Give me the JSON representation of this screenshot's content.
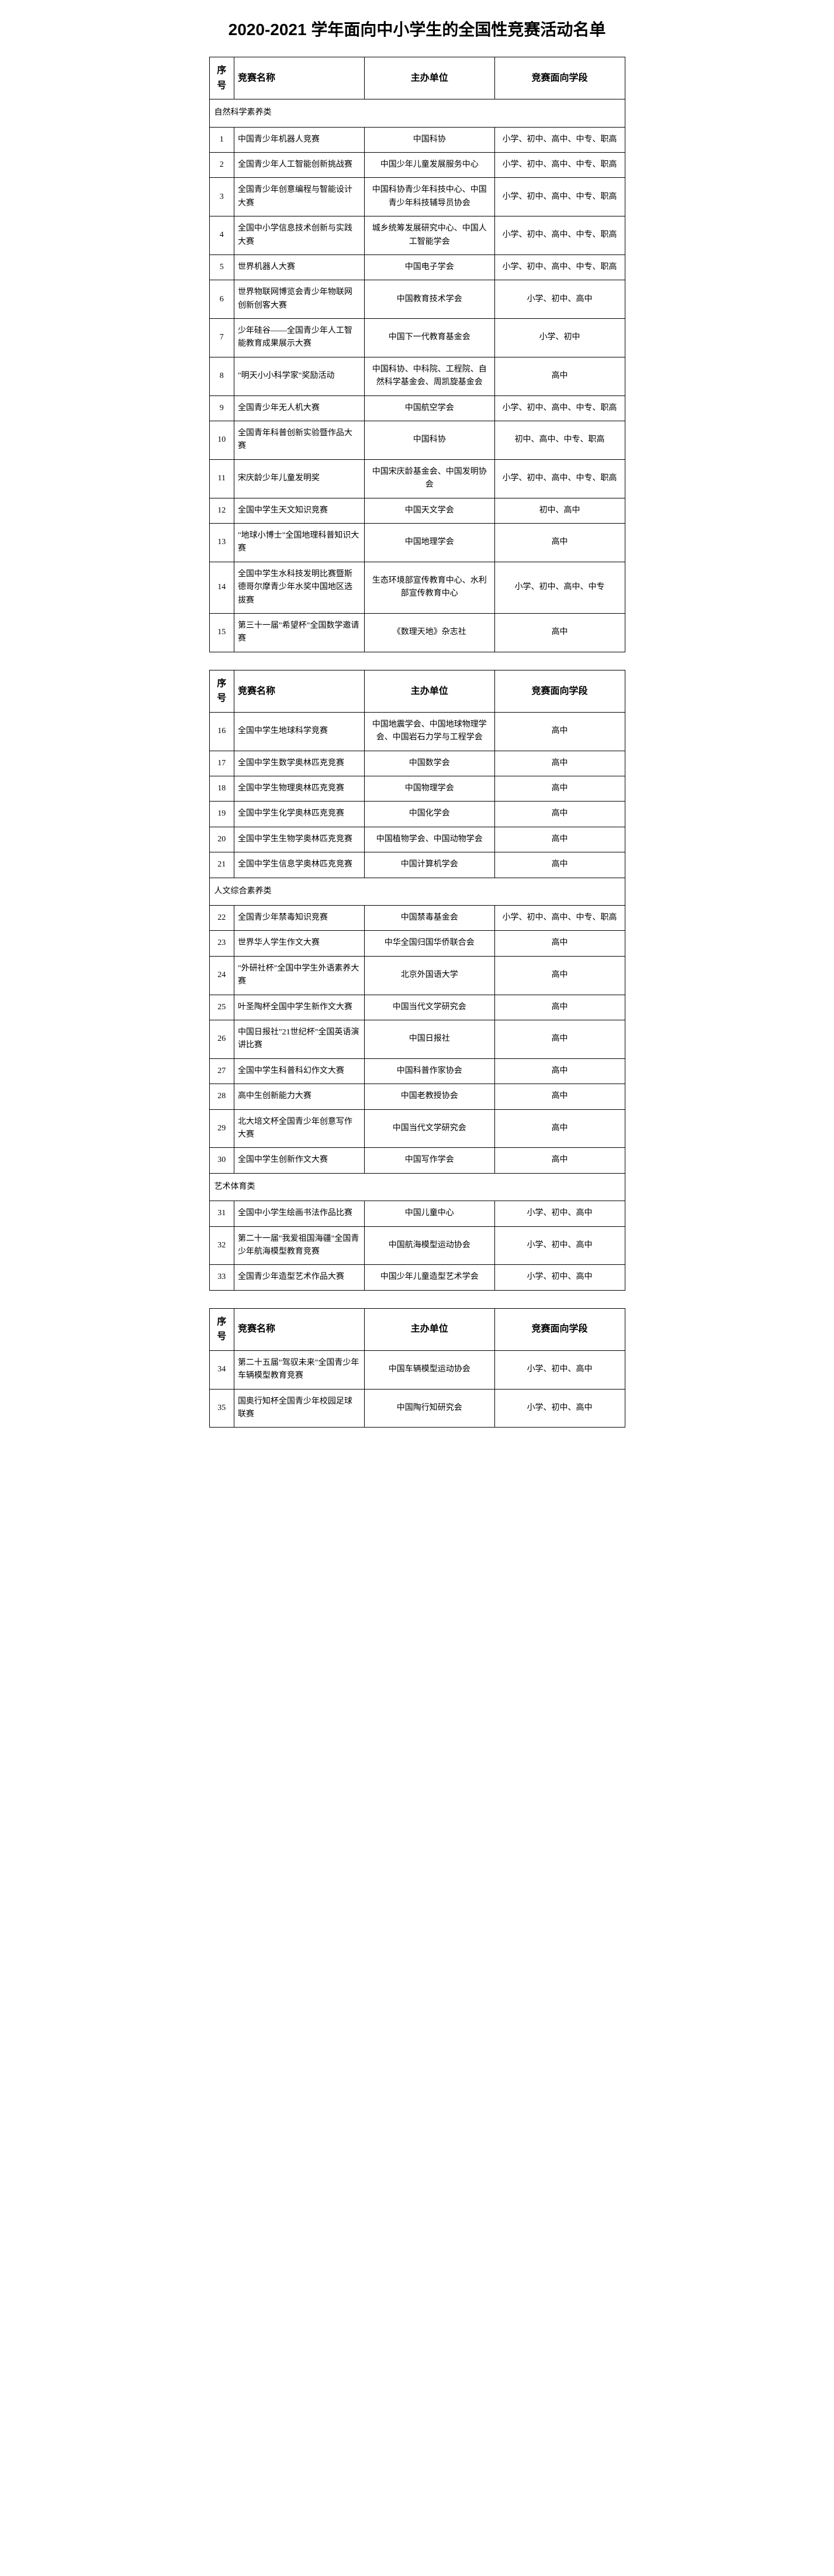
{
  "title": "2020-2021 学年面向中小学生的全国性竞赛活动名单",
  "headers": {
    "idx": "序号",
    "name": "竞赛名称",
    "org": "主办单位",
    "stage": "竞赛面向学段"
  },
  "categories": {
    "cat1": "自然科学素养类",
    "cat2": "人文综合素养类",
    "cat3": "艺术体育类"
  },
  "sections": [
    {
      "category": "cat1",
      "rows": [
        {
          "idx": "1",
          "name": "中国青少年机器人竞赛",
          "org": "中国科协",
          "stage": "小学、初中、高中、中专、职高"
        },
        {
          "idx": "2",
          "name": "全国青少年人工智能创新挑战赛",
          "org": "中国少年儿童发展服务中心",
          "stage": "小学、初中、高中、中专、职高"
        },
        {
          "idx": "3",
          "name": "全国青少年创意编程与智能设计大赛",
          "org": "中国科协青少年科技中心、中国青少年科技辅导员协会",
          "stage": "小学、初中、高中、中专、职高"
        },
        {
          "idx": "4",
          "name": "全国中小学信息技术创新与实践大赛",
          "org": "城乡统筹发展研究中心、中国人工智能学会",
          "stage": "小学、初中、高中、中专、职高"
        },
        {
          "idx": "5",
          "name": "世界机器人大赛",
          "org": "中国电子学会",
          "stage": "小学、初中、高中、中专、职高"
        },
        {
          "idx": "6",
          "name": "世界物联网博览会青少年物联网创新创客大赛",
          "org": "中国教育技术学会",
          "stage": "小学、初中、高中"
        },
        {
          "idx": "7",
          "name": "少年硅谷——全国青少年人工智能教育成果展示大赛",
          "org": "中国下一代教育基金会",
          "stage": "小学、初中"
        },
        {
          "idx": "8",
          "name": "\"明天小小科学家\"奖励活动",
          "org": "中国科协、中科院、工程院、自然科学基金会、周凯旋基金会",
          "stage": "高中"
        },
        {
          "idx": "9",
          "name": "全国青少年无人机大赛",
          "org": "中国航空学会",
          "stage": "小学、初中、高中、中专、职高"
        },
        {
          "idx": "10",
          "name": "全国青年科普创新实验暨作品大赛",
          "org": "中国科协",
          "stage": "初中、高中、中专、职高"
        },
        {
          "idx": "11",
          "name": "宋庆龄少年儿童发明奖",
          "org": "中国宋庆龄基金会、中国发明协会",
          "stage": "小学、初中、高中、中专、职高"
        },
        {
          "idx": "12",
          "name": "全国中学生天文知识竞赛",
          "org": "中国天文学会",
          "stage": "初中、高中"
        },
        {
          "idx": "13",
          "name": "\"地球小博士\"全国地理科普知识大赛",
          "org": "中国地理学会",
          "stage": "高中"
        },
        {
          "idx": "14",
          "name": "全国中学生水科技发明比赛暨斯德哥尔摩青少年水奖中国地区选拔赛",
          "org": "生态环境部宣传教育中心、水利部宣传教育中心",
          "stage": "小学、初中、高中、中专"
        },
        {
          "idx": "15",
          "name": "第三十一届\"希望杯\"全国数学邀请赛",
          "org": "《数理天地》杂志社",
          "stage": "高中"
        }
      ]
    },
    {
      "rows": [
        {
          "idx": "16",
          "name": "全国中学生地球科学竞赛",
          "org": "中国地震学会、中国地球物理学会、中国岩石力学与工程学会",
          "stage": "高中"
        },
        {
          "idx": "17",
          "name": "全国中学生数学奥林匹克竞赛",
          "org": "中国数学会",
          "stage": "高中"
        },
        {
          "idx": "18",
          "name": "全国中学生物理奥林匹克竞赛",
          "org": "中国物理学会",
          "stage": "高中"
        },
        {
          "idx": "19",
          "name": "全国中学生化学奥林匹克竞赛",
          "org": "中国化学会",
          "stage": "高中"
        },
        {
          "idx": "20",
          "name": "全国中学生生物学奥林匹克竞赛",
          "org": "中国植物学会、中国动物学会",
          "stage": "高中"
        },
        {
          "idx": "21",
          "name": "全国中学生信息学奥林匹克竞赛",
          "org": "中国计算机学会",
          "stage": "高中"
        }
      ],
      "category_after": "cat2",
      "rows_after": [
        {
          "idx": "22",
          "name": "全国青少年禁毒知识竞赛",
          "org": "中国禁毒基金会",
          "stage": "小学、初中、高中、中专、职高"
        },
        {
          "idx": "23",
          "name": "世界华人学生作文大赛",
          "org": "中华全国归国华侨联合会",
          "stage": "高中"
        },
        {
          "idx": "24",
          "name": "\"外研社杯\"全国中学生外语素养大赛",
          "org": "北京外国语大学",
          "stage": "高中"
        },
        {
          "idx": "25",
          "name": "叶圣陶杯全国中学生新作文大赛",
          "org": "中国当代文学研究会",
          "stage": "高中"
        },
        {
          "idx": "26",
          "name": "中国日报社\"21世纪杯\"全国英语演讲比赛",
          "org": "中国日报社",
          "stage": "高中"
        },
        {
          "idx": "27",
          "name": "全国中学生科普科幻作文大赛",
          "org": "中国科普作家协会",
          "stage": "高中"
        },
        {
          "idx": "28",
          "name": "高中生创新能力大赛",
          "org": "中国老教授协会",
          "stage": "高中"
        },
        {
          "idx": "29",
          "name": "北大培文杯全国青少年创意写作大赛",
          "org": "中国当代文学研究会",
          "stage": "高中"
        },
        {
          "idx": "30",
          "name": "全国中学生创新作文大赛",
          "org": "中国写作学会",
          "stage": "高中"
        }
      ],
      "category_after2": "cat3",
      "rows_after2": [
        {
          "idx": "31",
          "name": "全国中小学生绘画书法作品比赛",
          "org": "中国儿童中心",
          "stage": "小学、初中、高中"
        },
        {
          "idx": "32",
          "name": "第二十一届\"我爱祖国海疆\"全国青少年航海模型教育竞赛",
          "org": "中国航海模型运动协会",
          "stage": "小学、初中、高中"
        },
        {
          "idx": "33",
          "name": "全国青少年造型艺术作品大赛",
          "org": "中国少年儿童造型艺术学会",
          "stage": "小学、初中、高中"
        }
      ]
    },
    {
      "rows": [
        {
          "idx": "34",
          "name": "第二十五届\"驾驭未来\"全国青少年车辆模型教育竞赛",
          "org": "中国车辆模型运动协会",
          "stage": "小学、初中、高中"
        },
        {
          "idx": "35",
          "name": "国奥行知杯全国青少年校园足球联赛",
          "org": "中国陶行知研究会",
          "stage": "小学、初中、高中"
        }
      ]
    }
  ]
}
